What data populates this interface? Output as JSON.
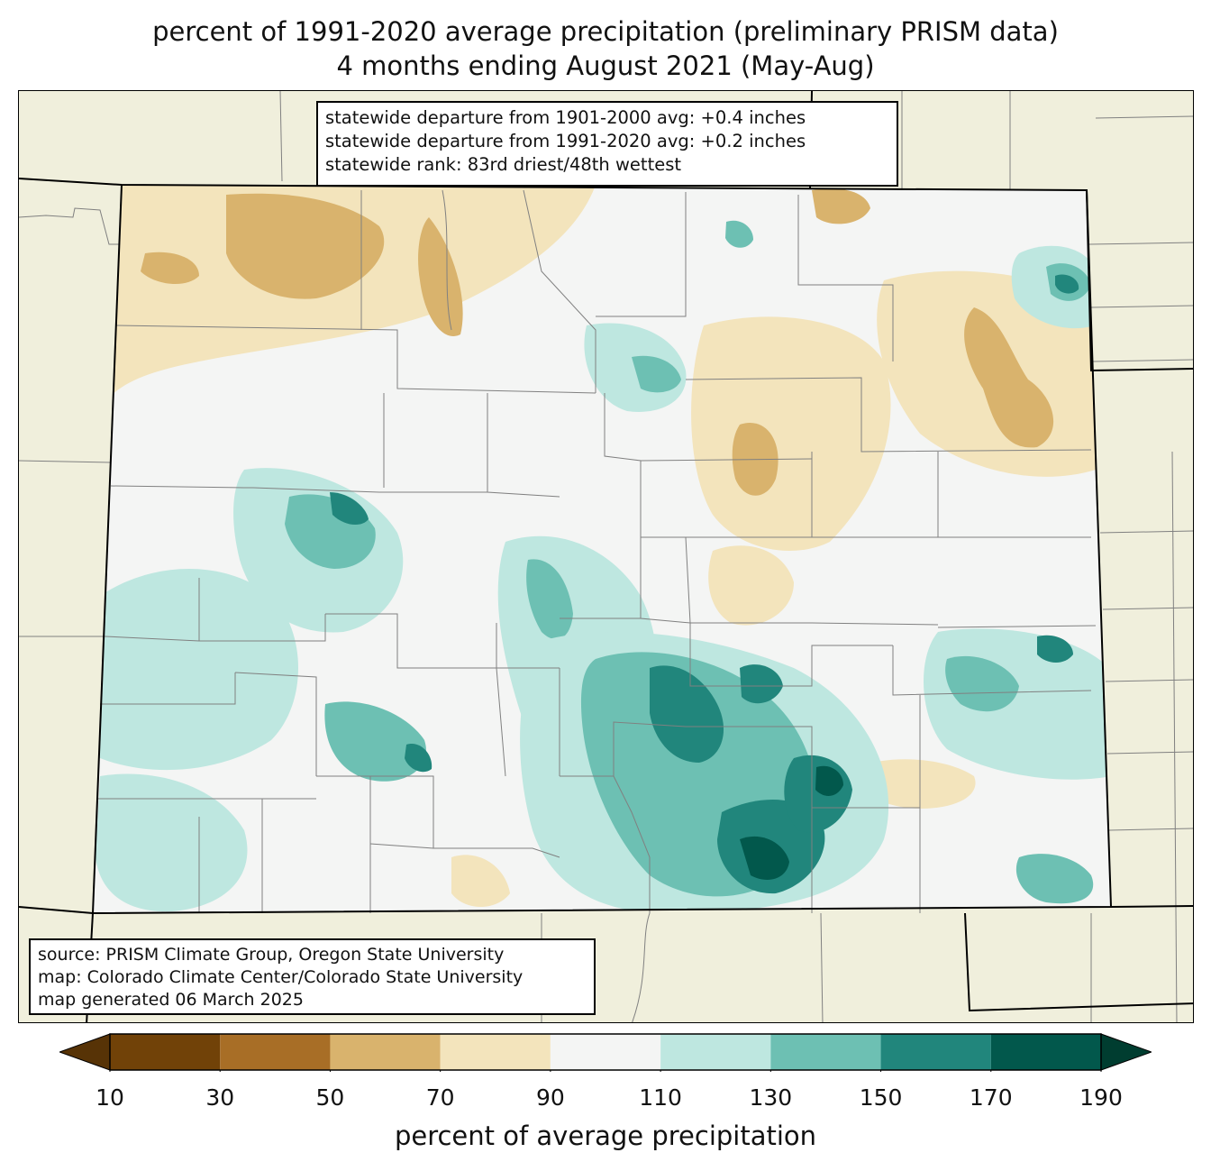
{
  "title": {
    "line1": "percent of 1991-2020 average precipitation (preliminary PRISM data)",
    "line2": "4 months ending August 2021 (May-Aug)"
  },
  "stats": [
    "statewide departure from 1901-2000 avg: +0.4 inches",
    "statewide departure from 1991-2020 avg: +0.2 inches",
    "statewide rank: 83rd driest/48th wettest"
  ],
  "source": [
    "source: PRISM Climate Group, Oregon State University",
    "map: Colorado Climate Center/Colorado State University",
    "map generated 06 March 2025"
  ],
  "colorbar": {
    "label": "percent of average precipitation",
    "ticks": [
      "10",
      "30",
      "50",
      "70",
      "90",
      "110",
      "130",
      "150",
      "170",
      "190"
    ],
    "colors": [
      "#714208",
      "#a86e26",
      "#d9b36d",
      "#f3e4bc",
      "#f4f5f4",
      "#bee7e0",
      "#6dc0b3",
      "#21867c",
      "#02584c"
    ],
    "under_color": "#573306",
    "over_color": "#003d30"
  },
  "map_colors": {
    "land_outside": "#f0efdc",
    "state_lines": "#000000",
    "county_lines": "#808080"
  }
}
